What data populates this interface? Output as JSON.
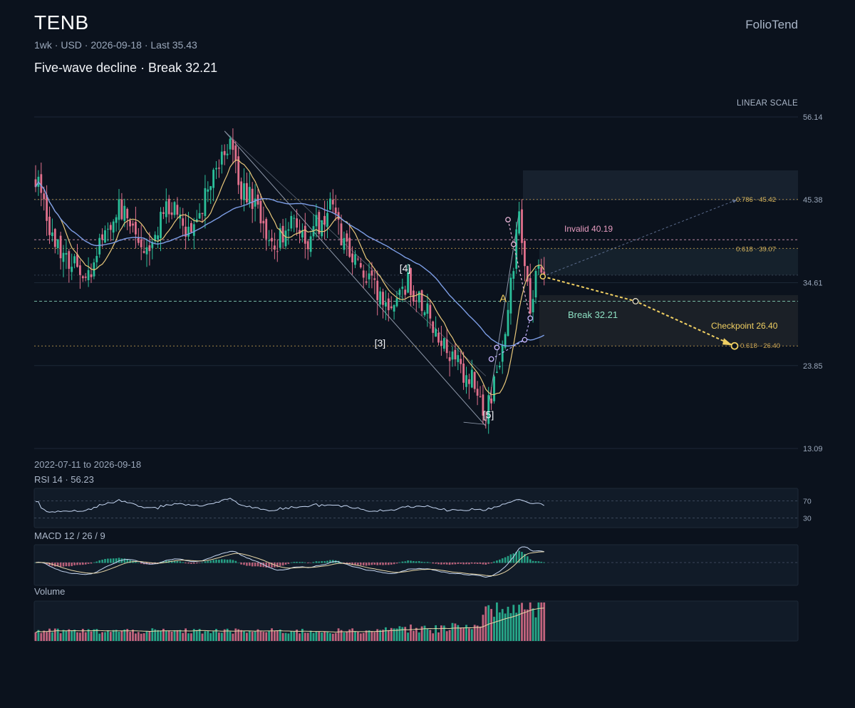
{
  "header": {
    "ticker": "TENB",
    "meta": "1wk · USD · 2026-09-18 · Last 35.43",
    "subtitle": "Five-wave decline · Break 32.21",
    "brand": "FolioTend",
    "scale_label": "LINEAR SCALE"
  },
  "footer": {
    "range_label": "2022-07-11 to 2026-09-18",
    "rsi_label": "RSI 14 · 56.23",
    "macd_label": "MACD 12 / 26 / 9",
    "volume_label": "Volume"
  },
  "colors": {
    "background": "#0b121d",
    "up": "#2bbf9a",
    "down": "#e0708c",
    "ma_fast": "#e8c77a",
    "ma_slow": "#7d9ee6",
    "accent": "#f0cf62",
    "invalid": "#e79cc0",
    "break": "#8de0c3",
    "grid": "#1c2736"
  },
  "chart_data": {
    "type": "candlestick",
    "x_range": [
      "2022-07-11",
      "2026-09-18"
    ],
    "interval": "1wk",
    "bars": 184,
    "ylim": [
      13.09,
      56.14
    ],
    "y_ticks": [
      56.14,
      45.38,
      34.61,
      23.85,
      13.09
    ],
    "last": 35.43,
    "keyframes": [
      [
        0,
        48.5
      ],
      [
        6,
        41.0
      ],
      [
        12,
        37.5
      ],
      [
        18,
        35.0
      ],
      [
        24,
        40.5
      ],
      [
        32,
        45.0
      ],
      [
        38,
        38.0
      ],
      [
        44,
        42.0
      ],
      [
        50,
        45.5
      ],
      [
        56,
        40.0
      ],
      [
        62,
        46.5
      ],
      [
        66,
        49.5
      ],
      [
        70,
        52.0
      ],
      [
        74,
        47.0
      ],
      [
        80,
        44.5
      ],
      [
        86,
        39.0
      ],
      [
        92,
        42.5
      ],
      [
        98,
        40.5
      ],
      [
        106,
        44.0
      ],
      [
        114,
        38.0
      ],
      [
        120,
        35.0
      ],
      [
        126,
        31.0
      ],
      [
        130,
        33.5
      ],
      [
        134,
        35.0
      ],
      [
        140,
        31.0
      ],
      [
        146,
        27.5
      ],
      [
        152,
        24.0
      ],
      [
        158,
        21.5
      ],
      [
        162,
        18.0
      ],
      [
        166,
        22.5
      ],
      [
        170,
        30.5
      ],
      [
        172,
        37.0
      ],
      [
        174,
        43.0
      ],
      [
        176,
        38.0
      ],
      [
        178,
        32.0
      ],
      [
        180,
        35.5
      ],
      [
        182,
        35.9
      ]
    ],
    "wave_labels": [
      {
        "label": "[3]",
        "bar": 124,
        "price": 26.8
      },
      {
        "label": "[4]",
        "bar": 133,
        "price": 36.5
      },
      {
        "label": "[5]",
        "bar": 163,
        "price": 17.5
      },
      {
        "label": "A",
        "bar": 169,
        "price": 32.6
      }
    ],
    "levels": [
      {
        "name": "Invalid",
        "value": 40.19,
        "label": "Invalid 40.19"
      },
      {
        "name": "Break",
        "value": 32.21,
        "label": "Break 32.21"
      },
      {
        "name": "Checkpoint",
        "value": 26.4,
        "label": "Checkpoint 26.40"
      },
      {
        "name": "Fib 0.786",
        "value": 45.42,
        "label": "0.786 · 45.42"
      },
      {
        "name": "Fib 0.618",
        "value": 39.07,
        "label": "0.618 · 39.07"
      },
      {
        "name": "Fib 0.618 target",
        "value": 26.4,
        "label": "0.618 · 26.40"
      }
    ],
    "projection": {
      "from_price": 35.43,
      "mid_price": 32.21,
      "target_price": 26.4
    },
    "rsi": {
      "period": 14,
      "value": 56.23,
      "levels": [
        70,
        30
      ]
    },
    "macd": {
      "fast": 12,
      "slow": 26,
      "signal": 9
    }
  }
}
